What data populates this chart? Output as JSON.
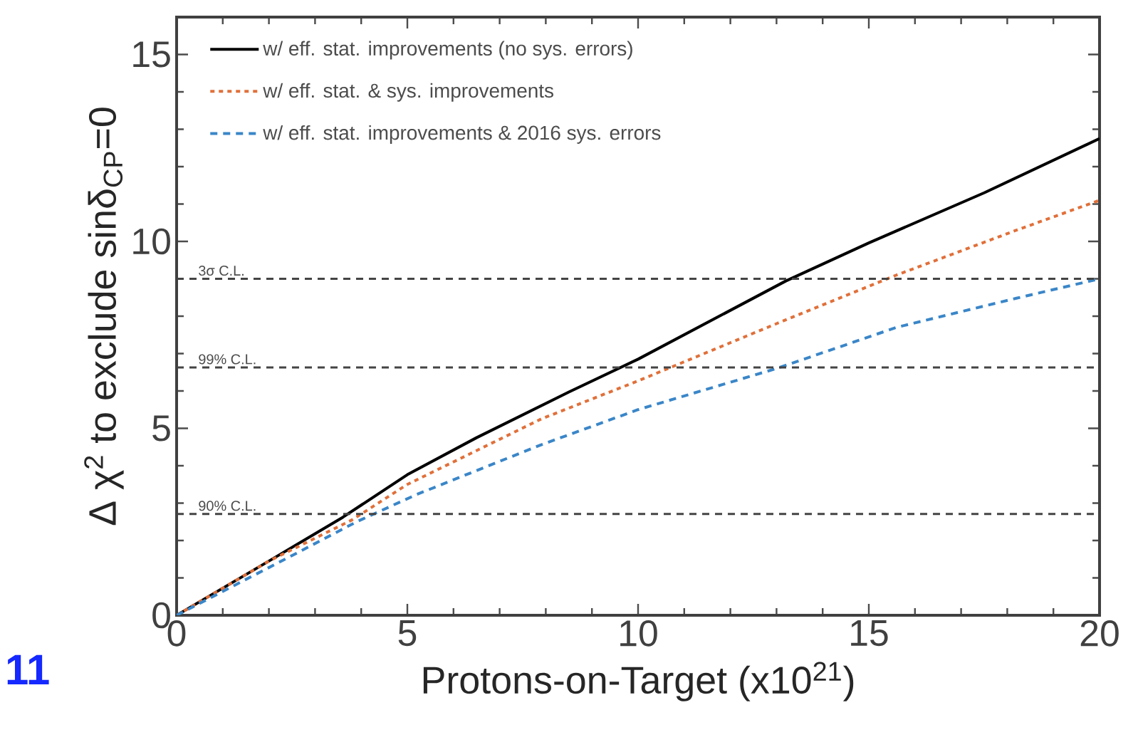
{
  "chart_data": {
    "type": "line",
    "xlabel": "Protons-on-Target (x10$^{21}$)",
    "ylabel": "Δ χ$^{2}$ to exclude sinδ$_{CP}$=0",
    "xlim": [
      0,
      20
    ],
    "ylim": [
      0,
      16
    ],
    "xticks": [
      0,
      5,
      10,
      15,
      20
    ],
    "yticks": [
      0,
      5,
      10,
      15
    ],
    "legend": "top left",
    "grid": false,
    "series": [
      {
        "name": "w/ eff. stat. improvements (no sys. errors)",
        "color": "#000000",
        "line_style": "solid",
        "x": [
          0,
          2,
          3.6,
          5,
          6.5,
          8.5,
          10,
          13.2,
          15,
          17.5,
          20
        ],
        "values": [
          0,
          1.45,
          2.62,
          3.76,
          4.75,
          5.97,
          6.85,
          8.94,
          9.96,
          11.3,
          12.75
        ]
      },
      {
        "name": "w/ eff. stat. & sys. improvements",
        "color": "#e0703a",
        "line_style": "dotted",
        "x": [
          0,
          2,
          3.8,
          5,
          7.9,
          10,
          13,
          15.6,
          18.2,
          20
        ],
        "values": [
          0,
          1.45,
          2.55,
          3.5,
          5.25,
          6.27,
          7.8,
          9.1,
          10.3,
          11.1
        ]
      },
      {
        "name": "w/ eff. stat. improvements & 2016 sys. errors",
        "color": "#3a86c8",
        "line_style": "dashed",
        "x": [
          0,
          2.35,
          3.9,
          5.2,
          7.9,
          10,
          13,
          15.6,
          18.2,
          20
        ],
        "values": [
          0,
          1.5,
          2.5,
          3.23,
          4.56,
          5.5,
          6.6,
          7.7,
          8.48,
          9.0
        ]
      }
    ],
    "ref_lines": [
      {
        "axis": "y",
        "value": 9,
        "label": "3σ C.L.",
        "color": "#444444",
        "line_style": "dashed"
      },
      {
        "axis": "y",
        "value": 6.63,
        "label": "99% C.L.",
        "color": "#444444",
        "line_style": "dashed"
      },
      {
        "axis": "y",
        "value": 2.71,
        "label": "90% C.L.",
        "color": "#444444",
        "line_style": "dashed"
      }
    ],
    "annotations": [
      "11"
    ]
  }
}
